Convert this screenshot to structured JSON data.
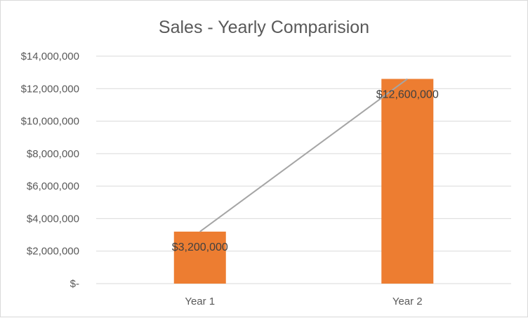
{
  "chart_data": {
    "type": "bar",
    "title": "Sales - Yearly Comparision",
    "categories": [
      "Year 1",
      "Year 2"
    ],
    "values": [
      3200000,
      12600000
    ],
    "data_labels": [
      "$3,200,000",
      "$12,600,000"
    ],
    "ylim": [
      0,
      14000000
    ],
    "yticks": [
      0,
      2000000,
      4000000,
      6000000,
      8000000,
      10000000,
      12000000,
      14000000
    ],
    "ytick_labels": [
      "$-",
      "$2,000,000",
      "$4,000,000",
      "$6,000,000",
      "$8,000,000",
      "$10,000,000",
      "$12,000,000",
      "$14,000,000"
    ],
    "grid": true,
    "legend": "none",
    "overlay": {
      "type": "line",
      "values": [
        3200000,
        12600000
      ],
      "color": "#a5a5a5"
    },
    "colors": {
      "bar": "#ed7d31",
      "gridline": "#d9d9d9",
      "text": "#595959"
    }
  }
}
